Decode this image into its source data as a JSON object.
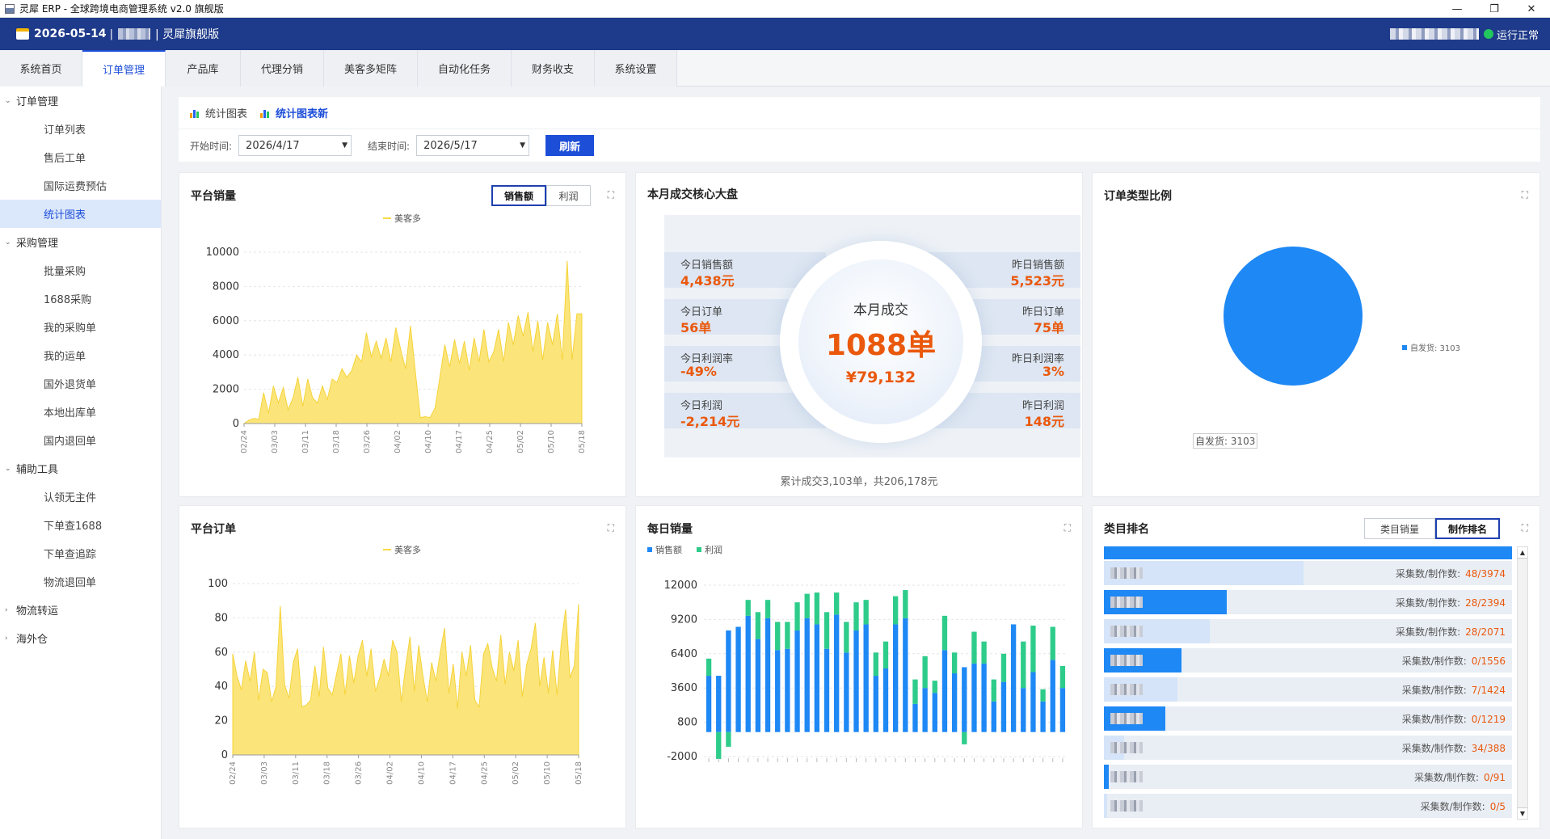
{
  "window": {
    "title": "灵犀 ERP - 全球跨境电商管理系统 v2.0 旗舰版",
    "min": "—",
    "max": "❐",
    "close": "✕"
  },
  "header": {
    "date": "2026-05-14",
    "sep": "|",
    "edition": "| 灵犀旗舰版",
    "status": "运行正常"
  },
  "nav": {
    "tabs": [
      "系统首页",
      "订单管理",
      "产品库",
      "代理分销",
      "美客多矩阵",
      "自动化任务",
      "财务收支",
      "系统设置"
    ],
    "active": 1
  },
  "sidebar": {
    "groups": [
      {
        "label": "订单管理",
        "open": true,
        "items": [
          "订单列表",
          "售后工单",
          "国际运费预估",
          "统计图表"
        ]
      },
      {
        "label": "采购管理",
        "open": true,
        "items": [
          "批量采购",
          "1688采购",
          "我的采购单",
          "我的运单",
          "国外退货单",
          "本地出库单",
          "国内退回单"
        ]
      },
      {
        "label": "辅助工具",
        "open": true,
        "items": [
          "认领无主件",
          "下单查1688",
          "下单查追踪",
          "物流退回单"
        ]
      },
      {
        "label": "物流转运",
        "open": false,
        "items": []
      },
      {
        "label": "海外仓",
        "open": false,
        "items": []
      }
    ],
    "active_item": "统计图表"
  },
  "subtabs": [
    "统计图表",
    "统计图表新"
  ],
  "filters": {
    "start_label": "开始时间:",
    "start_value": "2026/4/17",
    "end_label": "结束时间:",
    "end_value": "2026/5/17",
    "refresh": "刷新"
  },
  "cards": {
    "platform_sales": {
      "title": "平台销量",
      "toggle": [
        "销售额",
        "利润"
      ],
      "legend": "美客多"
    },
    "kpi": {
      "title": "本月成交核心大盘",
      "center_label": "本月成交",
      "center_orders": "1088单",
      "center_amount": "¥79,132",
      "left": [
        {
          "label": "今日销售额",
          "value": "4,438元"
        },
        {
          "label": "今日订单",
          "value": "56单"
        },
        {
          "label": "今日利润率",
          "value": "-49%"
        },
        {
          "label": "今日利润",
          "value": "-2,214元"
        }
      ],
      "right": [
        {
          "label": "昨日销售额",
          "value": "5,523元"
        },
        {
          "label": "昨日订单",
          "value": "75单"
        },
        {
          "label": "昨日利润率",
          "value": "3%"
        },
        {
          "label": "昨日利润",
          "value": "148元"
        }
      ],
      "footer": "累计成交3,103单，共206,178元"
    },
    "order_type": {
      "title": "订单类型比例",
      "legend": "自发货: 3103",
      "tooltip": "自发货: 3103"
    },
    "platform_orders": {
      "title": "平台订单",
      "legend": "美客多"
    },
    "daily_sales": {
      "title": "每日销量",
      "legend": [
        "销售额",
        "利润"
      ]
    },
    "category_rank": {
      "title": "类目排名",
      "toggle": [
        "类目销量",
        "制作排名"
      ],
      "label_prefix": "采集数/制作数:",
      "rows": [
        {
          "value": "48/3974",
          "share": 0.49
        },
        {
          "value": "28/2394",
          "share": 0.3
        },
        {
          "value": "28/2071",
          "share": 0.26
        },
        {
          "value": "0/1556",
          "share": 0.19
        },
        {
          "value": "7/1424",
          "share": 0.18
        },
        {
          "value": "0/1219",
          "share": 0.15
        },
        {
          "value": "34/388",
          "share": 0.05
        },
        {
          "value": "0/91",
          "share": 0.012
        },
        {
          "value": "0/5",
          "share": 0.001
        }
      ]
    }
  },
  "colors": {
    "brand": "#1e3a8a",
    "accent": "#1d4ed8",
    "area": "#f9d84a",
    "bar_blue": "#1e88f5",
    "bar_green": "#2ecc8a",
    "orange": "#ea580c"
  },
  "chart_data": [
    {
      "type": "area",
      "title": "平台销量",
      "series": [
        {
          "name": "美客多",
          "values": [
            0,
            200,
            300,
            250,
            1800,
            600,
            2200,
            1200,
            2100,
            800,
            1500,
            2700,
            1000,
            2600,
            1500,
            1200,
            2200,
            1400,
            2600,
            2400,
            3200,
            2700,
            3100,
            4000,
            3600,
            5300,
            3900,
            4800,
            3800,
            5000,
            3600,
            5600,
            4300,
            3200,
            5700,
            3000,
            350,
            400,
            350,
            900,
            2700,
            4600,
            3300,
            4900,
            3500,
            4800,
            3100,
            5000,
            3600,
            5500,
            3600,
            4200,
            5500,
            3600,
            5900,
            4600,
            6300,
            5100,
            6500,
            4200,
            6000,
            3700,
            5900,
            4600,
            6400,
            3700,
            9500,
            3700,
            6400,
            6400
          ]
        }
      ],
      "x_ticks": [
        "02/24",
        "03/03",
        "03/11",
        "03/18",
        "03/26",
        "04/02",
        "04/10",
        "04/17",
        "04/25",
        "05/02",
        "05/10",
        "05/18"
      ],
      "ylim": [
        0,
        10000
      ],
      "y_ticks": [
        0,
        2000,
        4000,
        6000,
        8000,
        10000
      ]
    },
    {
      "type": "area",
      "title": "平台订单",
      "series": [
        {
          "name": "美客多",
          "values": [
            59,
            46,
            38,
            55,
            43,
            60,
            32,
            50,
            48,
            31,
            40,
            87,
            41,
            33,
            54,
            62,
            28,
            29,
            32,
            52,
            34,
            63,
            39,
            35,
            47,
            59,
            35,
            58,
            42,
            58,
            67,
            46,
            62,
            37,
            45,
            56,
            46,
            67,
            60,
            31,
            52,
            69,
            37,
            64,
            46,
            31,
            54,
            43,
            60,
            74,
            36,
            53,
            27,
            60,
            46,
            64,
            32,
            28,
            59,
            65,
            51,
            43,
            70,
            41,
            60,
            49,
            67,
            34,
            53,
            62,
            77,
            40,
            57,
            36,
            61,
            35,
            66,
            85,
            45,
            52,
            88
          ]
        }
      ],
      "x_ticks": [
        "02/24",
        "03/03",
        "03/11",
        "03/18",
        "03/26",
        "04/02",
        "04/10",
        "04/17",
        "04/25",
        "05/02",
        "05/10",
        "05/18"
      ],
      "ylim": [
        0,
        100
      ],
      "y_ticks": [
        0,
        20,
        40,
        60,
        80,
        100
      ]
    },
    {
      "type": "bar",
      "title": "每日销量",
      "series": [
        {
          "name": "销售额",
          "values": [
            4600,
            4600,
            8300,
            8600,
            9500,
            7600,
            9300,
            6700,
            6800,
            8300,
            9300,
            8800,
            6800,
            9600,
            6500,
            8300,
            8800,
            4600,
            5200,
            8800,
            9300,
            2300,
            3600,
            3200,
            6700,
            4800,
            5300,
            5600,
            5600,
            2500,
            4100,
            8800,
            3600,
            4900,
            2500,
            5900,
            3600
          ]
        },
        {
          "name": "利润",
          "values": [
            1400,
            -2200,
            -1200,
            0,
            1300,
            2200,
            1500,
            2300,
            2200,
            2300,
            2000,
            2600,
            3000,
            1800,
            2500,
            2300,
            2000,
            1900,
            2200,
            2300,
            2300,
            2000,
            2600,
            1000,
            2800,
            1700,
            -1000,
            2600,
            1800,
            1800,
            2300,
            0,
            3800,
            3800,
            1000,
            2700,
            1800
          ]
        }
      ],
      "ylim": [
        -2000,
        12000
      ],
      "y_ticks": [
        -2000,
        800,
        3600,
        6400,
        9200,
        12000
      ]
    },
    {
      "type": "pie",
      "title": "订单类型比例",
      "series": [
        {
          "name": "自发货",
          "values": [
            3103
          ]
        }
      ],
      "legend_position": "right"
    }
  ]
}
